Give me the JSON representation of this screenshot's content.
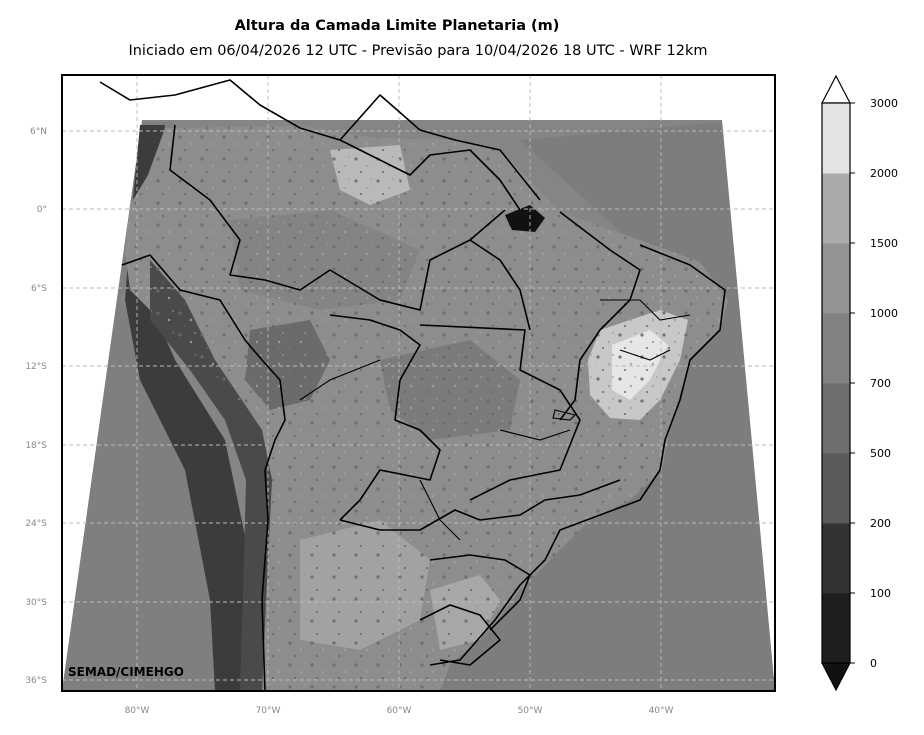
{
  "header": {
    "title": "Altura da Camada Limite Planetaria (m)",
    "subtitle": "Iniciado em 06/04/2026 12 UTC - Previsão para 10/04/2026 18 UTC - WRF 12km"
  },
  "map": {
    "credit": "SEMAD/CIMEHGO",
    "lat_ticks": [
      "6°N",
      "0°",
      "6°S",
      "12°S",
      "18°S",
      "24°S",
      "30°S",
      "36°S"
    ],
    "lon_ticks": [
      "80°W",
      "70°W",
      "60°W",
      "50°W",
      "40°W"
    ],
    "colors": {
      "ocean_base": "#858585",
      "land_base": "#8c8c8c",
      "grid": "#bbbbbb"
    }
  },
  "colorbar": {
    "levels": [
      "0",
      "100",
      "200",
      "500",
      "700",
      "1000",
      "1500",
      "2000",
      "3000"
    ],
    "colors": [
      "#1e1e1e",
      "#333333",
      "#5a5a5a",
      "#6e6e6e",
      "#818181",
      "#939393",
      "#aaaaaa",
      "#e3e3e3"
    ],
    "under_color": "#111111",
    "over_color": "#ffffff"
  }
}
